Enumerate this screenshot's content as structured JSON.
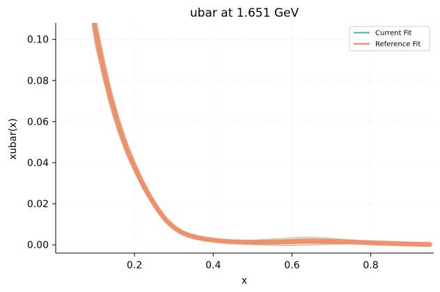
{
  "chart_data": {
    "type": "line",
    "title": "ubar at 1.651 GeV",
    "xlabel": "x",
    "ylabel": "xubar(x)",
    "xlim": [
      0.0,
      0.96
    ],
    "ylim": [
      -0.004,
      0.108
    ],
    "xticks": [
      0.2,
      0.4,
      0.6,
      0.8
    ],
    "xtick_labels": [
      "0.2",
      "0.4",
      "0.6",
      "0.8"
    ],
    "yticks": [
      0.0,
      0.02,
      0.04,
      0.06,
      0.08,
      0.1
    ],
    "ytick_labels": [
      "0.00",
      "0.02",
      "0.04",
      "0.06",
      "0.08",
      "0.10"
    ],
    "grid": true,
    "legend": {
      "placement": "top-right",
      "entries": [
        {
          "label": "Current Fit",
          "color": "#66c2a5"
        },
        {
          "label": "Reference Fit",
          "color": "#f0906a"
        }
      ]
    },
    "series": [
      {
        "name": "Reference Fit",
        "color": "#ee8e68",
        "x": [
          0.09,
          0.1,
          0.12,
          0.14,
          0.16,
          0.18,
          0.2,
          0.22,
          0.24,
          0.26,
          0.28,
          0.3,
          0.32,
          0.34,
          0.36,
          0.38,
          0.4,
          0.42,
          0.45,
          0.5,
          0.55,
          0.6,
          0.65,
          0.7,
          0.75,
          0.8,
          0.85,
          0.9,
          0.95
        ],
        "y": [
          0.12,
          0.105,
          0.087,
          0.071,
          0.058,
          0.047,
          0.038,
          0.03,
          0.023,
          0.017,
          0.012,
          0.0085,
          0.006,
          0.0045,
          0.0035,
          0.0028,
          0.0023,
          0.0019,
          0.0015,
          0.0012,
          0.0013,
          0.0016,
          0.0018,
          0.0017,
          0.0014,
          0.001,
          0.0007,
          0.0004,
          0.0002
        ]
      }
    ],
    "replicas": {
      "color": "#c8bc96",
      "count": 40
    }
  }
}
